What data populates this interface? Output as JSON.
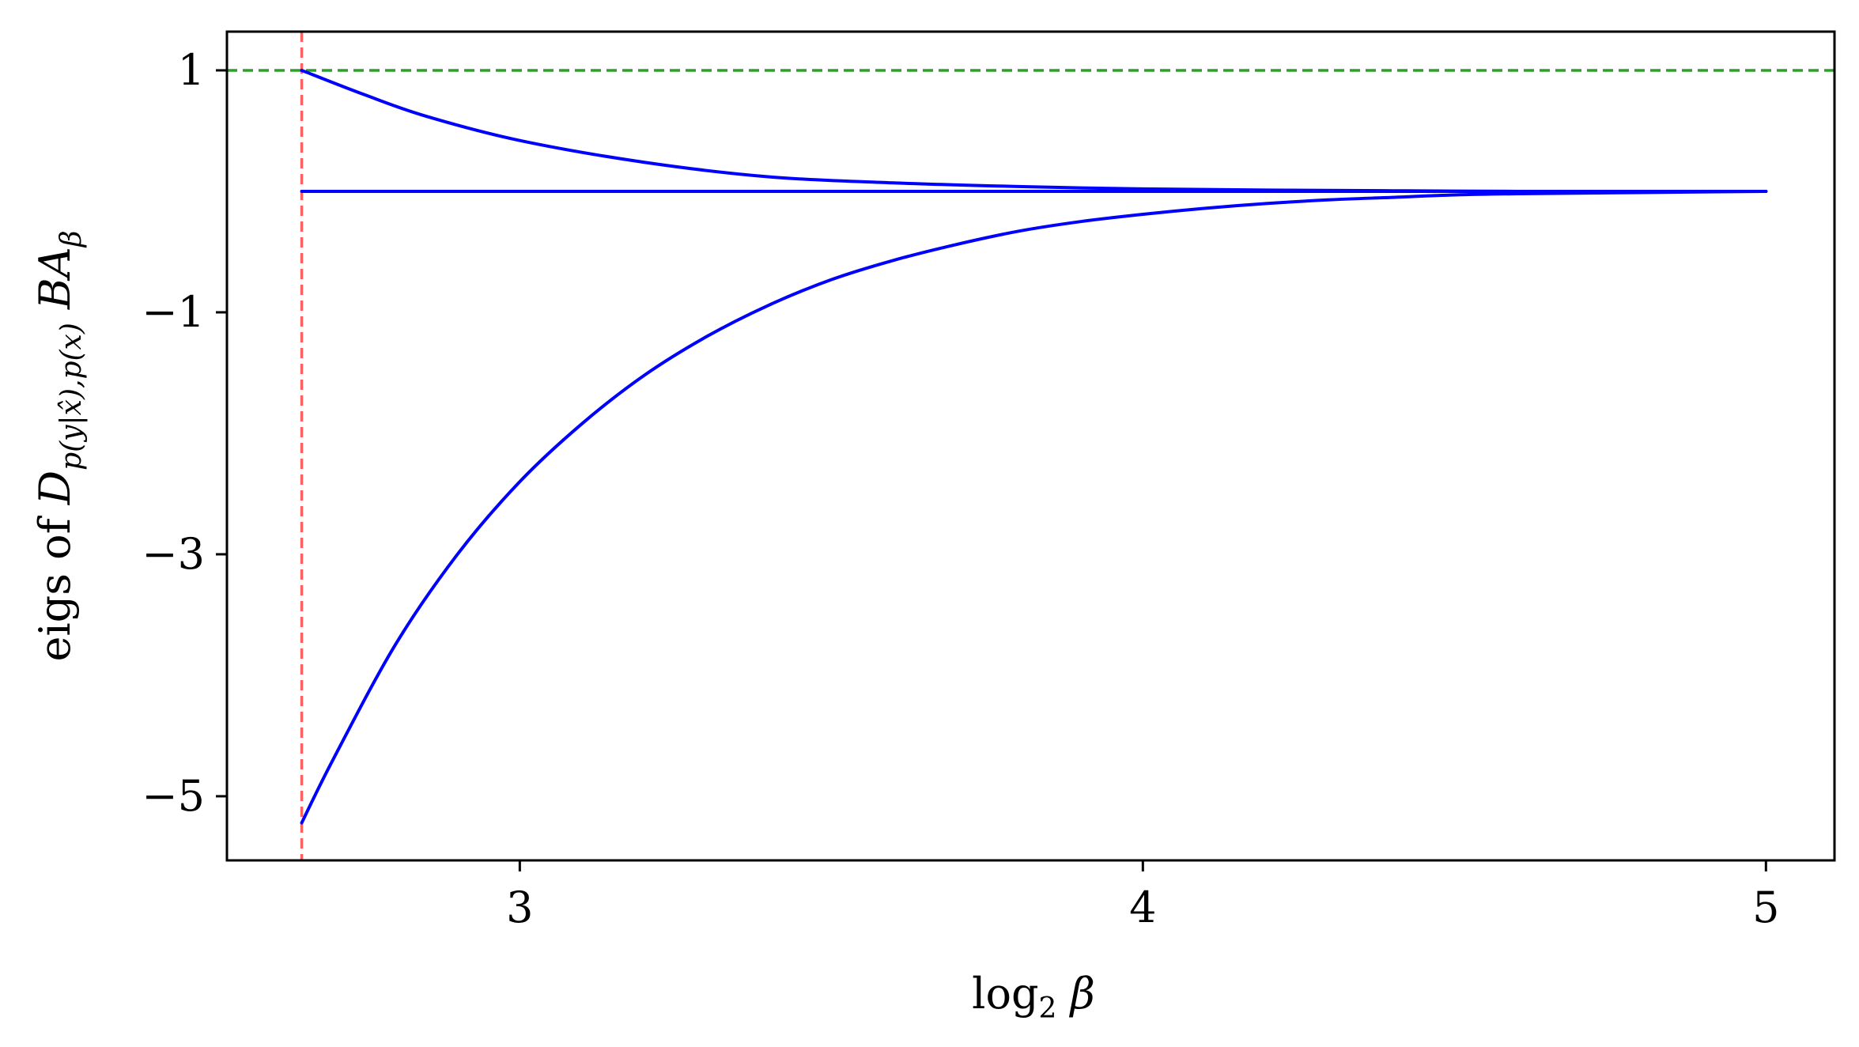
{
  "chart_data": {
    "type": "line",
    "xlabel": "log₂ β",
    "ylabel": "eigs of D_{p(y|x̂),p(x)} B A_β",
    "xlim": [
      2.53,
      5.11
    ],
    "ylim": [
      -5.53,
      1.32
    ],
    "xticks": [
      3,
      4,
      5
    ],
    "yticks": [
      1,
      -1,
      -3,
      -5
    ],
    "xtick_labels": [
      "3",
      "4",
      "5"
    ],
    "ytick_labels": [
      "1",
      "−1",
      "−3",
      "−5"
    ],
    "grid": false,
    "legend": "none",
    "series": [
      {
        "color": "#0000ff",
        "x": [
          2.65,
          2.75,
          2.85,
          3.0,
          3.2,
          3.4,
          3.6,
          3.8,
          4.0,
          4.2,
          4.4,
          4.6,
          4.8,
          5.0
        ],
        "values": [
          1.0,
          0.8,
          0.62,
          0.42,
          0.24,
          0.12,
          0.07,
          0.04,
          0.02,
          0.01,
          0.005,
          0.0,
          0.0,
          0.0
        ]
      },
      {
        "color": "#0000ff",
        "x": [
          2.65,
          5.0
        ],
        "values": [
          0.0,
          0.0
        ]
      },
      {
        "color": "#0000ff",
        "x": [
          2.65,
          2.7,
          2.8,
          2.9,
          3.0,
          3.1,
          3.2,
          3.3,
          3.4,
          3.5,
          3.6,
          3.7,
          3.8,
          3.9,
          4.0,
          4.1,
          4.2,
          4.3,
          4.4,
          4.5,
          4.6,
          4.8,
          5.0
        ],
        "values": [
          -5.22,
          -4.7,
          -3.75,
          -3.0,
          -2.4,
          -1.92,
          -1.52,
          -1.2,
          -0.94,
          -0.73,
          -0.57,
          -0.44,
          -0.33,
          -0.25,
          -0.19,
          -0.14,
          -0.1,
          -0.07,
          -0.05,
          -0.03,
          -0.02,
          -0.01,
          0.0
        ]
      }
    ],
    "reference_lines": [
      {
        "orientation": "horizontal",
        "value": 1.0,
        "color": "#2ca02c",
        "style": "dashed"
      },
      {
        "orientation": "vertical",
        "value": 2.65,
        "color": "#ff6060",
        "style": "dashed"
      }
    ]
  }
}
